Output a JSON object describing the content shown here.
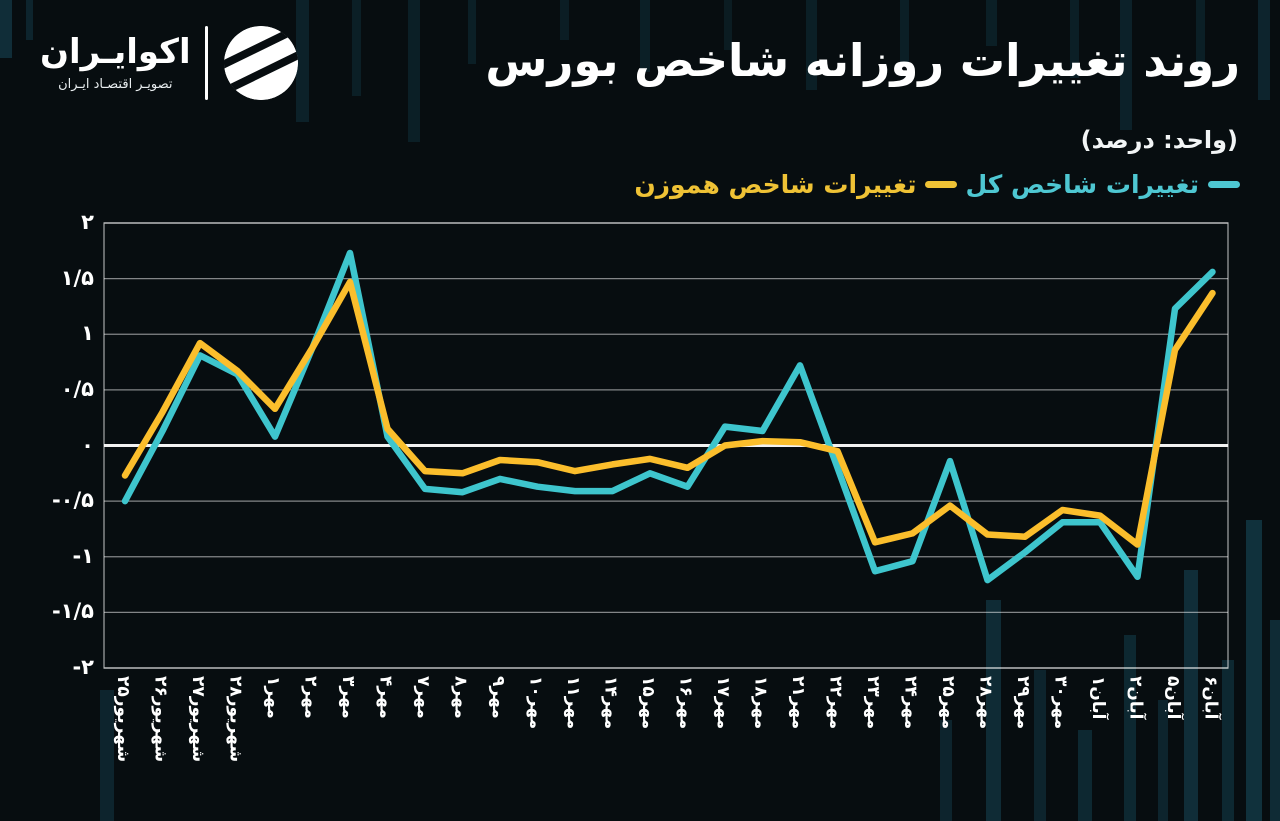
{
  "brand": {
    "name": "اکوایـران",
    "tagline": "تصویـر اقتصـاد ایـران"
  },
  "header": {
    "title": "روند تغییرات روزانه شاخص بورس",
    "subtitle": "(واحد: درصد)"
  },
  "legend": [
    {
      "label": "تغییرات شاخص کل",
      "color": "#4ec7d2"
    },
    {
      "label": "تغییرات شاخص هموزن",
      "color": "#efc235"
    }
  ],
  "colors": {
    "background": "#070d10",
    "grid": "#ffffff",
    "series_total": "#3ec5cd",
    "series_equal_weight": "#fbbe2c"
  },
  "chart_data": {
    "type": "line",
    "title": "روند تغییرات روزانه شاخص بورس",
    "unit_label": "(واحد: درصد)",
    "xlabel": "",
    "ylabel": "",
    "ylim": [
      -2,
      2
    ],
    "grid": true,
    "zero_line": true,
    "legend_position": "top-right",
    "categories": [
      "شهریور۲۵",
      "شهریور۲۶",
      "شهریور۲۷",
      "شهریور۲۸",
      "مهر۱",
      "مهر۲",
      "مهر۳",
      "مهر۴",
      "مهر۷",
      "مهر۸",
      "مهر۹",
      "مهر۱۰",
      "مهر۱۱",
      "مهر۱۴",
      "مهر۱۵",
      "مهر۱۶",
      "مهر۱۷",
      "مهر۱۸",
      "مهر۲۱",
      "مهر۲۲",
      "مهر۲۳",
      "مهر۲۴",
      "مهر۲۵",
      "مهر۲۸",
      "مهر۲۹",
      "مهر۳۰",
      "آبان۱",
      "آبان۲",
      "آبان۵",
      "آبان۶"
    ],
    "y_ticks": [
      {
        "label": "۲",
        "value": 2
      },
      {
        "label": "۱/۵",
        "value": 1.5
      },
      {
        "label": "۱",
        "value": 1
      },
      {
        "label": "۰/۵",
        "value": 0.5
      },
      {
        "label": "۰",
        "value": 0
      },
      {
        "label": "-۰/۵",
        "value": -0.5
      },
      {
        "label": "-۱",
        "value": -1
      },
      {
        "label": "-۱/۵",
        "value": -1.5
      },
      {
        "label": "-۲",
        "value": -2
      }
    ],
    "series": [
      {
        "name": "تغییرات شاخص کل",
        "color": "#3ec5cd",
        "values": [
          -0.5,
          0.13,
          0.81,
          0.64,
          0.08,
          0.88,
          1.73,
          0.08,
          -0.39,
          -0.42,
          -0.3,
          -0.37,
          -0.41,
          -0.41,
          -0.25,
          -0.37,
          0.17,
          0.13,
          0.72,
          -0.2,
          -1.13,
          -1.04,
          -0.14,
          -1.21,
          -0.96,
          -0.69,
          -0.69,
          -1.18,
          1.23,
          1.56
        ]
      },
      {
        "name": "تغییرات شاخص هموزن",
        "color": "#fbbe2c",
        "values": [
          -0.27,
          0.3,
          0.92,
          0.67,
          0.33,
          0.88,
          1.47,
          0.15,
          -0.23,
          -0.25,
          -0.13,
          -0.15,
          -0.23,
          -0.17,
          -0.12,
          -0.2,
          0,
          0.04,
          0.03,
          -0.05,
          -0.87,
          -0.79,
          -0.54,
          -0.8,
          -0.82,
          -0.58,
          -0.63,
          -0.89,
          0.86,
          1.37
        ]
      }
    ]
  }
}
